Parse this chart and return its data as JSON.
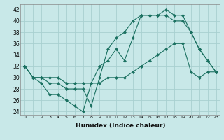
{
  "xlabel": "Humidex (Indice chaleur)",
  "bg_color": "#c8e8e8",
  "grid_color": "#a8d0d0",
  "line_color": "#1a7060",
  "xlim": [
    -0.5,
    23.5
  ],
  "ylim": [
    23.5,
    43
  ],
  "xticks": [
    0,
    1,
    2,
    3,
    4,
    5,
    6,
    7,
    8,
    9,
    10,
    11,
    12,
    13,
    14,
    15,
    16,
    17,
    18,
    19,
    20,
    21,
    22,
    23
  ],
  "yticks": [
    24,
    26,
    28,
    30,
    32,
    34,
    36,
    38,
    40,
    42
  ],
  "line1_x": [
    0,
    1,
    2,
    3,
    4,
    5,
    6,
    7,
    8,
    9,
    10,
    11,
    12,
    13,
    14,
    15,
    16,
    17,
    18,
    19,
    20,
    21,
    22,
    23
  ],
  "line1_y": [
    32,
    30,
    29,
    27,
    27,
    26,
    25,
    24,
    29,
    32,
    33,
    35,
    33,
    37,
    41,
    41,
    41,
    42,
    41,
    41,
    38,
    35,
    33,
    31
  ],
  "line2_x": [
    0,
    1,
    2,
    3,
    4,
    5,
    6,
    7,
    8,
    9,
    10,
    11,
    12,
    13,
    14,
    15,
    16,
    17,
    18,
    19,
    20,
    21,
    22,
    23
  ],
  "line2_y": [
    32,
    30,
    30,
    29,
    29,
    28,
    28,
    28,
    25,
    30,
    35,
    37,
    38,
    40,
    41,
    41,
    41,
    41,
    40,
    40,
    38,
    35,
    33,
    31
  ],
  "line3_x": [
    0,
    1,
    2,
    3,
    4,
    5,
    6,
    7,
    8,
    9,
    10,
    11,
    12,
    13,
    14,
    15,
    16,
    17,
    18,
    19,
    20,
    21,
    22,
    23
  ],
  "line3_y": [
    32,
    30,
    30,
    30,
    30,
    29,
    29,
    29,
    29,
    29,
    30,
    30,
    30,
    31,
    32,
    33,
    34,
    35,
    36,
    36,
    31,
    30,
    31,
    31
  ]
}
